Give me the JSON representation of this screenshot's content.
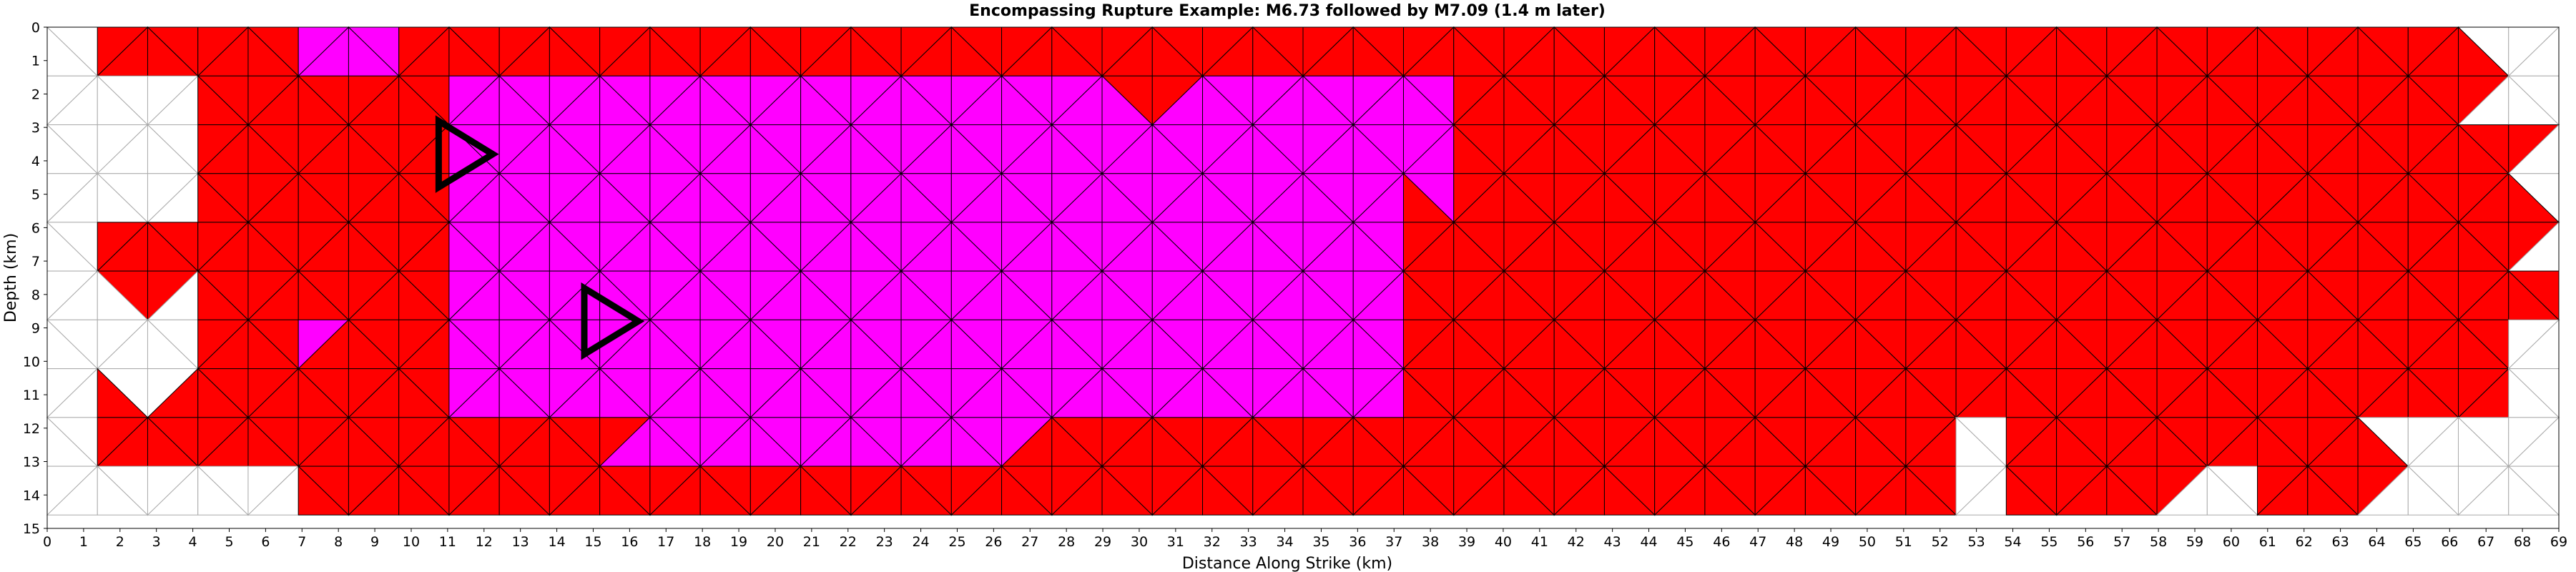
{
  "chart_data": {
    "type": "heatmap",
    "title": "Encompassing Rupture Example: M6.73 followed by M7.09 (1.4 m later)",
    "xlabel": "Distance Along Strike (km)",
    "ylabel": "Depth (km)",
    "xlim": [
      0,
      69
    ],
    "ylim": [
      15,
      0
    ],
    "x_ticks": [
      0,
      1,
      2,
      3,
      4,
      5,
      6,
      7,
      8,
      9,
      10,
      11,
      12,
      13,
      14,
      15,
      16,
      17,
      18,
      19,
      20,
      21,
      22,
      23,
      24,
      25,
      26,
      27,
      28,
      29,
      30,
      31,
      32,
      33,
      34,
      35,
      36,
      37,
      38,
      39,
      40,
      41,
      42,
      43,
      44,
      45,
      46,
      47,
      48,
      49,
      50,
      51,
      52,
      53,
      54,
      55,
      56,
      57,
      58,
      59,
      60,
      61,
      62,
      63,
      64,
      65,
      66,
      67,
      68,
      69
    ],
    "x_tick_labels": [
      "0",
      "1",
      "2",
      "3",
      "4",
      "5",
      "6",
      "7",
      "8",
      "9",
      "10",
      "11",
      "12",
      "13",
      "14",
      "15",
      "16",
      "17",
      "18",
      "19",
      "20",
      "21",
      "22",
      "23",
      "24",
      "25",
      "26",
      "27",
      "28",
      "29",
      "30",
      "31",
      "32",
      "33",
      "34",
      "35",
      "36",
      "37",
      "38",
      "39",
      "40",
      "41",
      "42",
      "43",
      "44",
      "45",
      "46",
      "47",
      "48",
      "49",
      "50",
      "51",
      "52",
      "53",
      "54",
      "55",
      "56",
      "57",
      "58",
      "59",
      "60",
      "61",
      "62",
      "63",
      "64",
      "65",
      "66",
      "67",
      "68",
      "69"
    ],
    "y_ticks": [
      0,
      1,
      2,
      3,
      4,
      5,
      6,
      7,
      8,
      9,
      10,
      11,
      12,
      13,
      14,
      15
    ],
    "y_tick_labels": [
      "0",
      "1",
      "2",
      "3",
      "4",
      "5",
      "6",
      "7",
      "8",
      "9",
      "10",
      "11",
      "12",
      "13",
      "14",
      "15"
    ],
    "mesh_extent": {
      "x": [
        0,
        69
      ],
      "depth": [
        0,
        14.6
      ]
    },
    "colors": {
      "first_rupture": "#ff00ff",
      "second_rupture": "#ff0000",
      "unruptured": "#ffffff",
      "mesh_line_rupture": "#000000",
      "mesh_line_unruptured": "#aaaaaa"
    },
    "first_rupture_extent": [
      {
        "x": [
          7.3,
          10.0
        ],
        "depth": [
          0,
          1.9
        ]
      },
      {
        "x": [
          10.7,
          38.5
        ],
        "depth": [
          1.0,
          14.6
        ]
      },
      {
        "x": [
          7.3,
          8.7
        ],
        "depth": [
          8.3,
          9.3
        ]
      }
    ],
    "first_rupture_exclusions": [
      {
        "x": [
          10.0,
          16.0
        ],
        "depth": [
          0,
          1.0
        ]
      },
      {
        "x": [
          29.5,
          31.8
        ],
        "depth": [
          0.4,
          2.1
        ]
      },
      {
        "x": [
          36.4,
          38.5
        ],
        "depth": [
          0,
          1.4
        ]
      },
      {
        "x": [
          37.2,
          38.5
        ],
        "depth": [
          5.2,
          14.6
        ]
      },
      {
        "x": [
          10.7,
          16.0
        ],
        "depth": [
          11.8,
          14.6
        ]
      },
      {
        "x": [
          16.0,
          38.5
        ],
        "depth": [
          13.3,
          14.6
        ]
      },
      {
        "x": [
          27.0,
          38.5
        ],
        "depth": [
          11.5,
          14.6
        ]
      }
    ],
    "unruptured_regions": [
      {
        "x": [
          0,
          4.0
        ],
        "depth": [
          1.0,
          14.6
        ]
      },
      {
        "x": [
          0,
          1.4
        ],
        "depth": [
          0,
          1.0
        ]
      },
      {
        "x": [
          4.0,
          7.3
        ],
        "depth": [
          12.8,
          14.6
        ]
      },
      {
        "x": [
          66.8,
          69
        ],
        "depth": [
          0,
          2.8
        ]
      },
      {
        "x": [
          68.2,
          69
        ],
        "depth": [
          2.8,
          7.0
        ]
      },
      {
        "x": [
          67.6,
          69
        ],
        "depth": [
          9.2,
          14.6
        ]
      },
      {
        "x": [
          64.0,
          69
        ],
        "depth": [
          11.2,
          14.6
        ]
      },
      {
        "x": [
          58.8,
          60.6
        ],
        "depth": [
          13.2,
          14.6
        ]
      },
      {
        "x": [
          52.0,
          53.5
        ],
        "depth": [
          12.0,
          14.6
        ]
      }
    ],
    "unruptured_exceptions": [
      {
        "x": [
          1.4,
          4.0
        ],
        "depth": [
          5.6,
          7.8
        ]
      },
      {
        "x": [
          1.4,
          4.0
        ],
        "depth": [
          10.8,
          13.4
        ]
      }
    ],
    "hypocenters": [
      {
        "label": "M6.73",
        "x": 11.3,
        "depth": 3.8,
        "size": 2.2
      },
      {
        "label": "M7.09",
        "x": 15.3,
        "depth": 8.8,
        "size": 2.2
      }
    ]
  }
}
